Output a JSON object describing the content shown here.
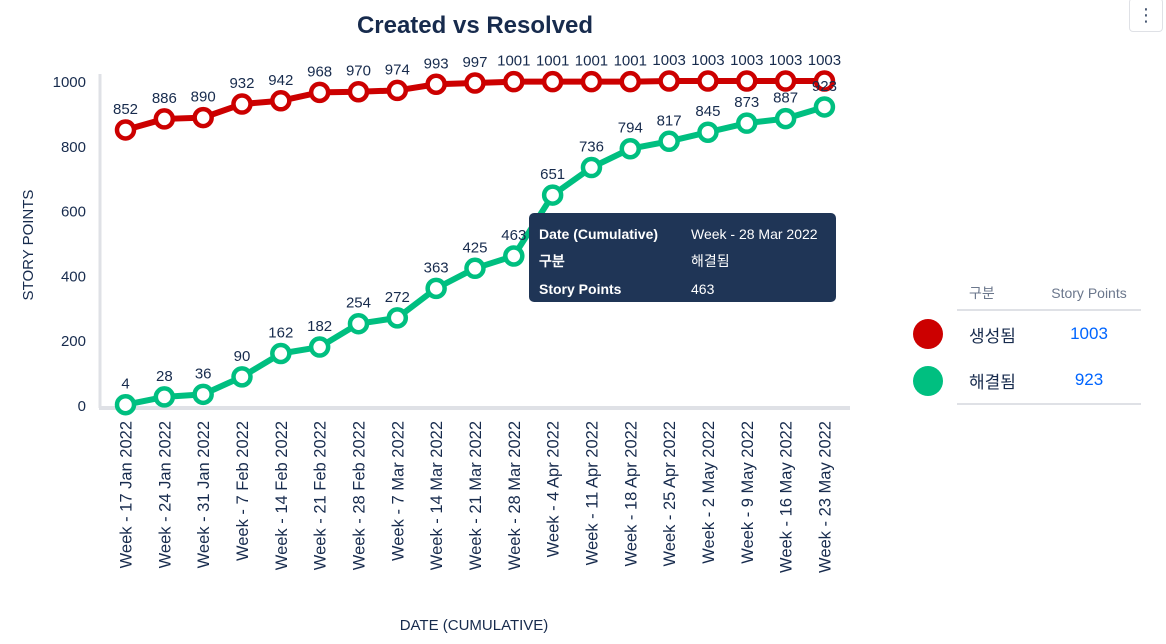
{
  "chart_data": {
    "type": "line",
    "title": "Created vs Resolved",
    "xlabel": "DATE (CUMULATIVE)",
    "ylabel": "STORY POINTS",
    "ylim": [
      0,
      1000
    ],
    "yticks": [
      0,
      200,
      400,
      600,
      800,
      1000
    ],
    "categories": [
      "Week - 17 Jan 2022",
      "Week - 24 Jan 2022",
      "Week - 31 Jan 2022",
      "Week - 7 Feb 2022",
      "Week - 14 Feb 2022",
      "Week - 21 Feb 2022",
      "Week - 28 Feb 2022",
      "Week - 7 Mar 2022",
      "Week - 14 Mar 2022",
      "Week - 21 Mar 2022",
      "Week - 28 Mar 2022",
      "Week - 4 Apr 2022",
      "Week - 11 Apr 2022",
      "Week - 18 Apr 2022",
      "Week - 25 Apr 2022",
      "Week - 2 May 2022",
      "Week - 9 May 2022",
      "Week - 16 May 2022",
      "Week - 23 May 2022"
    ],
    "series": [
      {
        "name": "생성됨",
        "color": "#cc0000",
        "values": [
          852,
          886,
          890,
          932,
          942,
          968,
          970,
          974,
          993,
          997,
          1001,
          1001,
          1001,
          1001,
          1003,
          1003,
          1003,
          1003,
          1003
        ]
      },
      {
        "name": "해결됨",
        "color": "#00bf80",
        "values": [
          4,
          28,
          36,
          90,
          162,
          182,
          254,
          272,
          363,
          425,
          463,
          651,
          736,
          794,
          817,
          845,
          873,
          887,
          923
        ]
      }
    ]
  },
  "legend": {
    "header_category": "구분",
    "header_value": "Story Points",
    "rows": [
      {
        "name": "생성됨",
        "value": "1003",
        "color": "#cc0000"
      },
      {
        "name": "해결됨",
        "value": "923",
        "color": "#00bf80"
      }
    ]
  },
  "tooltip": {
    "rows": [
      {
        "key": "Date (Cumulative)",
        "value": "Week - 28 Mar 2022"
      },
      {
        "key": "구분",
        "value": "해결됨"
      },
      {
        "key": "Story Points",
        "value": "463"
      }
    ]
  },
  "menu": {
    "icon": "more-vertical-icon",
    "glyph": "⋮"
  }
}
